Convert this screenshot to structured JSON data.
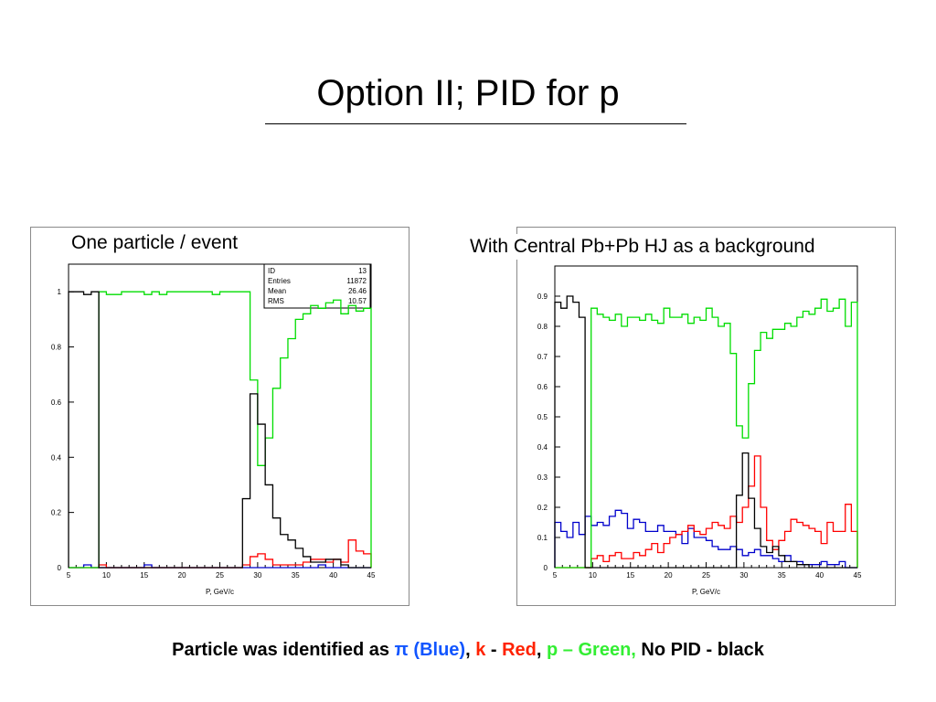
{
  "slide": {
    "title": "Option II; PID for p",
    "legend": {
      "prefix": "Particle was identified as ",
      "pi": "π (Blue)",
      "sep1": ",  ",
      "k": "k",
      "dash1": " - ",
      "red": "Red",
      "sep2": ",  ",
      "p": "p – Green,",
      "nopid": " No PID - black"
    }
  },
  "colors": {
    "pi": "#0000cc",
    "k": "#ff0000",
    "p": "#00dd00",
    "nopid": "#000000"
  },
  "chart_data": [
    {
      "type": "line",
      "title": "One particle  /  event",
      "xlabel": "P, GeV/c",
      "ylabel": "",
      "xlim": [
        5,
        45
      ],
      "ylim": [
        0,
        1.1
      ],
      "x_ticks": [
        5,
        10,
        15,
        20,
        25,
        30,
        35,
        40,
        45
      ],
      "y_ticks": [
        0,
        0.2,
        0.4,
        0.6,
        0.8,
        1
      ],
      "y_tick_labels": [
        "0",
        "0.2",
        "0.4",
        "0.6",
        "0.8",
        "1"
      ],
      "stats_box": {
        "rows": [
          {
            "label": "ID",
            "value": "13"
          },
          {
            "label": "Entries",
            "value": "11872"
          },
          {
            "label": "Mean",
            "value": "26.46"
          },
          {
            "label": "RMS",
            "value": "10.57"
          }
        ]
      },
      "bin_edges": [
        5,
        6,
        7,
        8,
        9,
        10,
        11,
        12,
        13,
        14,
        15,
        16,
        17,
        18,
        19,
        20,
        21,
        22,
        23,
        24,
        25,
        26,
        27,
        28,
        29,
        30,
        31,
        32,
        33,
        34,
        35,
        36,
        37,
        38,
        39,
        40,
        41,
        42,
        43,
        44,
        45
      ],
      "series": [
        {
          "color": "pi",
          "values": [
            0,
            0,
            0.01,
            0,
            0,
            0,
            0,
            0,
            0,
            0,
            0.01,
            0,
            0,
            0,
            0,
            0,
            0,
            0,
            0,
            0,
            0,
            0,
            0,
            0,
            0,
            0,
            0,
            0,
            0,
            0,
            0,
            0,
            0,
            0.01,
            0,
            0,
            0,
            0,
            0,
            0
          ]
        },
        {
          "color": "k",
          "values": [
            0,
            0,
            0,
            0,
            0.01,
            0,
            0,
            0,
            0,
            0,
            0,
            0,
            0,
            0,
            0,
            0,
            0,
            0,
            0,
            0,
            0,
            0,
            0,
            0.01,
            0.04,
            0.05,
            0.03,
            0.01,
            0.01,
            0.01,
            0.01,
            0.02,
            0.03,
            0.03,
            0.02,
            0.03,
            0.02,
            0.1,
            0.06,
            0.05
          ]
        },
        {
          "color": "p",
          "values": [
            0,
            0,
            0,
            0,
            1,
            0.99,
            0.99,
            1,
            1,
            1,
            0.99,
            1,
            0.99,
            1,
            1,
            1,
            1,
            1,
            1,
            0.99,
            1,
            1,
            1,
            1,
            0.68,
            0.37,
            0.47,
            0.65,
            0.76,
            0.83,
            0.9,
            0.92,
            0.95,
            0.94,
            0.96,
            0.97,
            0.92,
            0.95,
            0.93,
            0.94
          ]
        },
        {
          "color": "nopid",
          "values": [
            1,
            1,
            0.99,
            1,
            0,
            0,
            0,
            0,
            0,
            0,
            0,
            0,
            0,
            0,
            0,
            0,
            0,
            0,
            0,
            0,
            0,
            0,
            0,
            0.25,
            0.63,
            0.52,
            0.3,
            0.18,
            0.12,
            0.1,
            0.07,
            0.04,
            0.02,
            0.02,
            0.03,
            0.03,
            0.01,
            0,
            0,
            0
          ]
        }
      ]
    },
    {
      "type": "line",
      "title": "With Central Pb+Pb HJ as a background",
      "xlabel": "P, GeV/c",
      "ylabel": "",
      "xlim": [
        5,
        45
      ],
      "ylim": [
        0,
        1.0
      ],
      "x_ticks": [
        5,
        10,
        15,
        20,
        25,
        30,
        35,
        40,
        45
      ],
      "y_ticks": [
        0,
        0.1,
        0.2,
        0.3,
        0.4,
        0.5,
        0.6,
        0.7,
        0.8,
        0.9
      ],
      "y_tick_labels": [
        "0",
        "0.1",
        "0.2",
        "0.3",
        "0.4",
        "0.5",
        "0.6",
        "0.7",
        "0.8",
        "0.9"
      ],
      "bin_edges": [
        5,
        5.8,
        6.6,
        7.4,
        8.2,
        9,
        9.8,
        10.6,
        11.4,
        12.2,
        13,
        13.8,
        14.6,
        15.4,
        16.2,
        17,
        17.8,
        18.6,
        19.4,
        20.2,
        21,
        21.8,
        22.6,
        23.4,
        24.2,
        25,
        25.8,
        26.6,
        27.4,
        28.2,
        29,
        29.8,
        30.6,
        31.4,
        32.2,
        33,
        33.8,
        34.6,
        35.4,
        36.2,
        37,
        37.8,
        38.6,
        39.4,
        40.2,
        41,
        41.8,
        42.6,
        43.4,
        44.2,
        45
      ],
      "series": [
        {
          "color": "pi",
          "values": [
            0.15,
            0.12,
            0.1,
            0.15,
            0.11,
            0.17,
            0.14,
            0.15,
            0.14,
            0.17,
            0.19,
            0.18,
            0.13,
            0.16,
            0.15,
            0.12,
            0.12,
            0.14,
            0.12,
            0.12,
            0.11,
            0.08,
            0.13,
            0.1,
            0.1,
            0.09,
            0.07,
            0.06,
            0.06,
            0.07,
            0.06,
            0.04,
            0.05,
            0.06,
            0.04,
            0.04,
            0.03,
            0.02,
            0.04,
            0.02,
            0.02,
            0.01,
            0.01,
            0.01,
            0.02,
            0.01,
            0.01,
            0.02,
            0,
            0
          ]
        },
        {
          "color": "k",
          "values": [
            0,
            0,
            0,
            0,
            0,
            0,
            0.03,
            0.04,
            0.02,
            0.04,
            0.05,
            0.03,
            0.03,
            0.05,
            0.04,
            0.06,
            0.08,
            0.05,
            0.08,
            0.1,
            0.11,
            0.12,
            0.14,
            0.12,
            0.11,
            0.13,
            0.15,
            0.14,
            0.13,
            0.17,
            0.15,
            0.2,
            0.27,
            0.37,
            0.2,
            0.09,
            0.06,
            0.09,
            0.12,
            0.16,
            0.15,
            0.14,
            0.13,
            0.12,
            0.08,
            0.15,
            0.12,
            0.12,
            0.21,
            0.12
          ]
        },
        {
          "color": "p",
          "values": [
            0,
            0,
            0,
            0,
            0,
            0,
            0.86,
            0.84,
            0.83,
            0.82,
            0.84,
            0.8,
            0.83,
            0.83,
            0.82,
            0.84,
            0.82,
            0.81,
            0.86,
            0.83,
            0.83,
            0.84,
            0.81,
            0.83,
            0.82,
            0.86,
            0.83,
            0.8,
            0.81,
            0.71,
            0.47,
            0.43,
            0.61,
            0.72,
            0.78,
            0.76,
            0.79,
            0.79,
            0.81,
            0.8,
            0.83,
            0.85,
            0.84,
            0.86,
            0.89,
            0.85,
            0.86,
            0.89,
            0.8,
            0.88
          ]
        },
        {
          "color": "nopid",
          "values": [
            0.88,
            0.86,
            0.9,
            0.88,
            0.83,
            0,
            0,
            0,
            0,
            0,
            0,
            0,
            0,
            0,
            0,
            0,
            0,
            0,
            0,
            0,
            0,
            0,
            0,
            0,
            0,
            0,
            0,
            0,
            0,
            0,
            0.24,
            0.38,
            0.23,
            0.13,
            0.07,
            0.05,
            0.07,
            0.04,
            0.02,
            0.02,
            0.01,
            0.01,
            0,
            0,
            0,
            0,
            0,
            0,
            0,
            0
          ]
        }
      ]
    }
  ]
}
